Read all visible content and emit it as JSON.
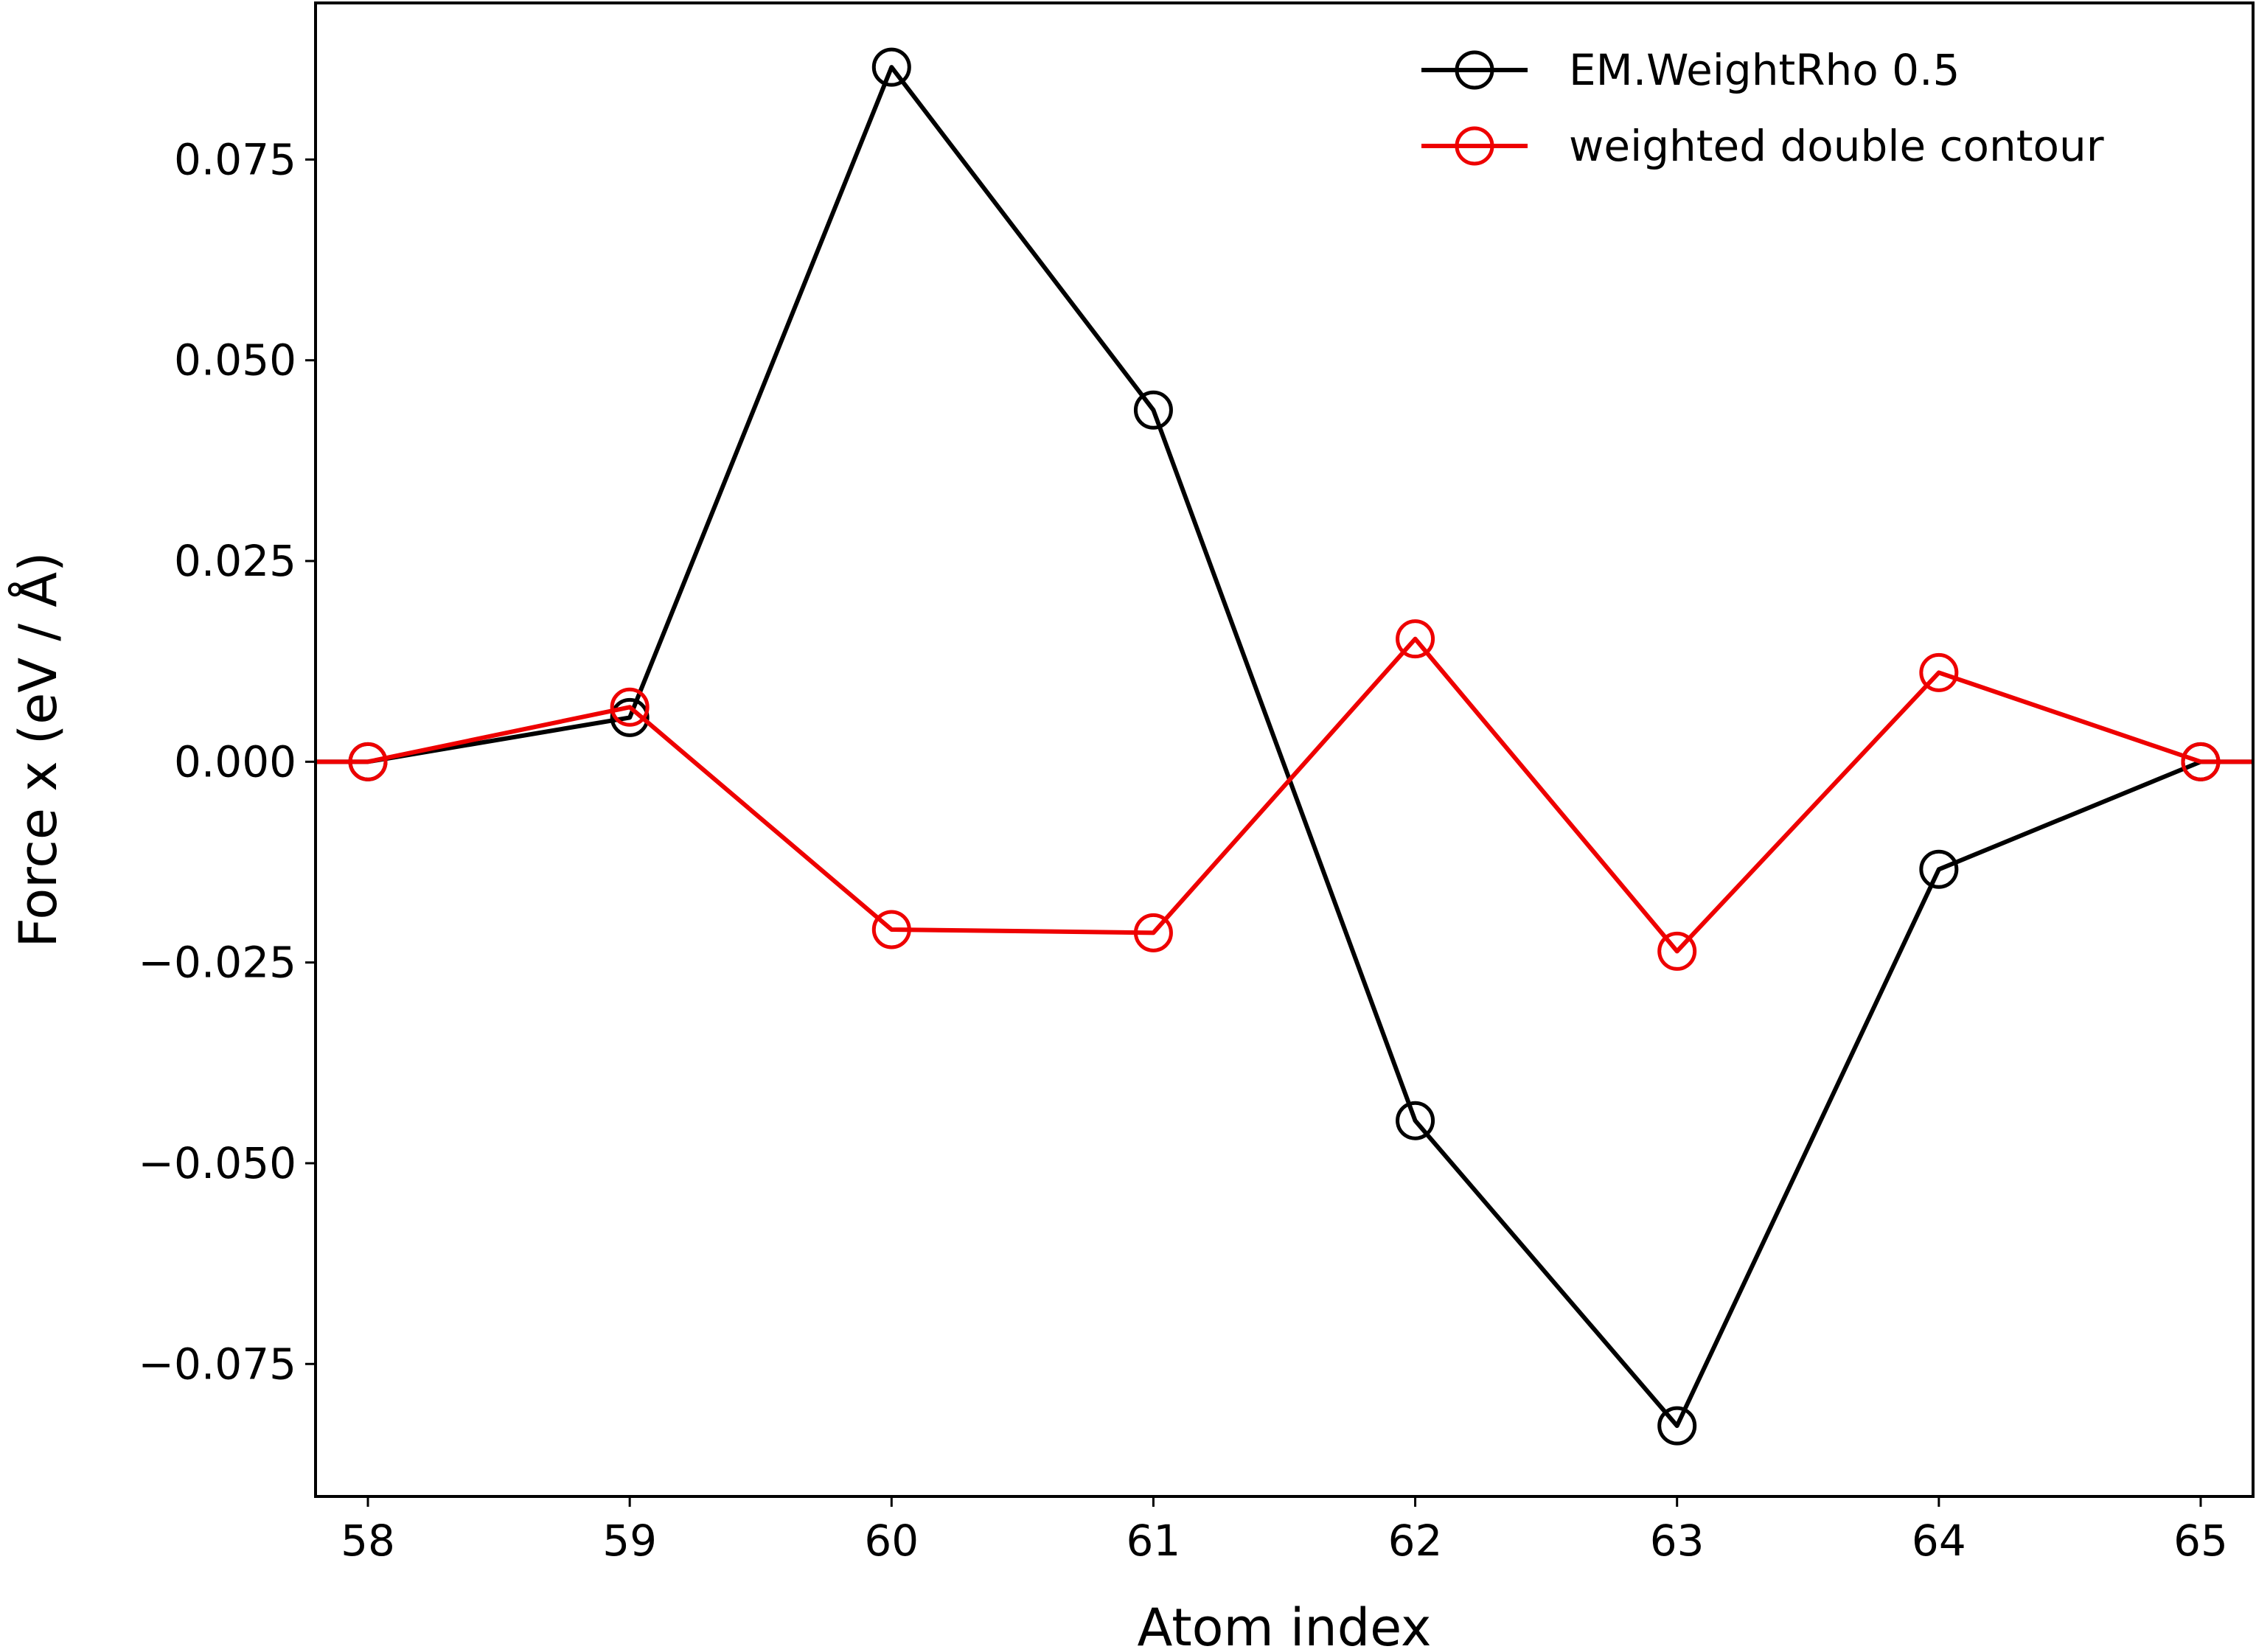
{
  "chart_data": {
    "type": "line",
    "xlabel": "Atom index",
    "ylabel": "Force x (eV / Å)",
    "x": [
      58,
      59,
      60,
      61,
      62,
      63,
      64,
      65
    ],
    "xlim": [
      57.8,
      65.2
    ],
    "ylim": [
      -0.0915,
      0.0945
    ],
    "x_ticks": [
      {
        "value": 58,
        "label": "58"
      },
      {
        "value": 59,
        "label": "59"
      },
      {
        "value": 60,
        "label": "60"
      },
      {
        "value": 61,
        "label": "61"
      },
      {
        "value": 62,
        "label": "62"
      },
      {
        "value": 63,
        "label": "63"
      },
      {
        "value": 64,
        "label": "64"
      },
      {
        "value": 65,
        "label": "65"
      }
    ],
    "y_ticks": [
      {
        "value": 0.075,
        "label": "0.075"
      },
      {
        "value": 0.05,
        "label": "0.050"
      },
      {
        "value": 0.025,
        "label": "0.025"
      },
      {
        "value": 0.0,
        "label": "0.000"
      },
      {
        "value": -0.025,
        "label": "−0.025"
      },
      {
        "value": -0.05,
        "label": "−0.050"
      },
      {
        "value": -0.075,
        "label": "−0.075"
      }
    ],
    "series": [
      {
        "name": "EM.WeightRho 0.5",
        "color": "#000000",
        "values": [
          0.0,
          0.0055,
          0.0865,
          0.0438,
          -0.0447,
          -0.0827,
          -0.0134,
          0.0
        ]
      },
      {
        "name": "weighted double contour",
        "color": "#ee0000",
        "values": [
          0.0,
          0.0068,
          -0.0209,
          -0.0213,
          0.0153,
          -0.0236,
          0.0111,
          0.0
        ]
      }
    ],
    "legend_position": "upper-right",
    "grid": false
  }
}
